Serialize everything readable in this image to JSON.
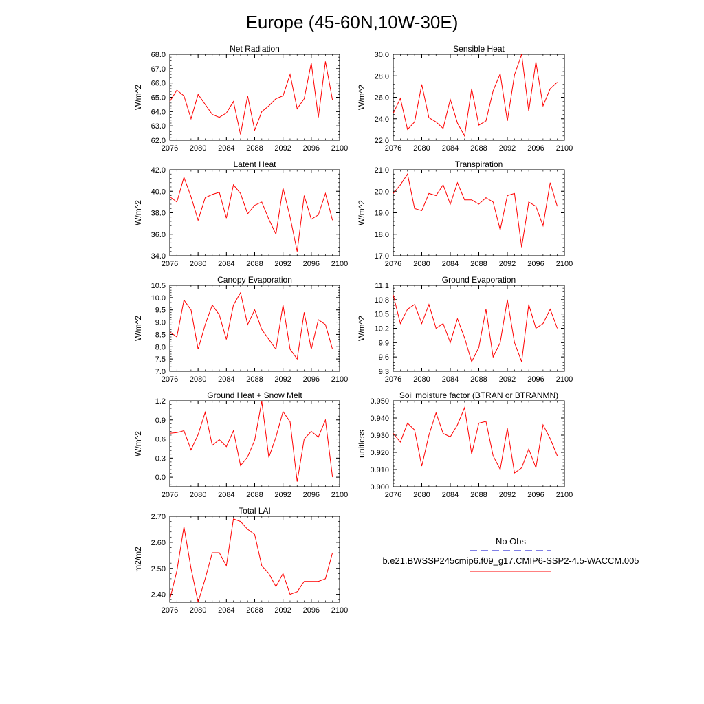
{
  "title": "Europe (45-60N,10W-30E)",
  "legend": {
    "obs_label": "No Obs",
    "model_label": "b.e21.BWSSP245cmip6.f09_g17.CMIP6-SSP2-4.5-WACCM.005",
    "obs_color": "#0000cc",
    "model_color": "#ff0000"
  },
  "chart_data": [
    {
      "type": "line",
      "title": "Net Radiation",
      "ylabel": "W/m^2",
      "xlim": [
        2076,
        2100
      ],
      "x_ticks": [
        "2076",
        "2080",
        "2084",
        "2088",
        "2092",
        "2096",
        "2100"
      ],
      "ylim": [
        62.0,
        68.0
      ],
      "y_ticks": [
        "62.0",
        "63.0",
        "64.0",
        "65.0",
        "66.0",
        "67.0",
        "68.0"
      ],
      "grid": false,
      "series": [
        {
          "color": "#ff0000",
          "x": [
            2076,
            2077,
            2078,
            2079,
            2080,
            2081,
            2082,
            2083,
            2084,
            2085,
            2086,
            2087,
            2088,
            2089,
            2090,
            2091,
            2092,
            2093,
            2094,
            2095,
            2096,
            2097,
            2098,
            2099
          ],
          "y": [
            64.7,
            65.5,
            65.1,
            63.5,
            65.2,
            64.5,
            63.8,
            63.6,
            63.9,
            64.7,
            62.4,
            65.1,
            62.7,
            64.0,
            64.4,
            64.9,
            65.1,
            66.6,
            64.2,
            64.9,
            67.4,
            63.6,
            67.5,
            64.8
          ]
        }
      ]
    },
    {
      "type": "line",
      "title": "Sensible Heat",
      "ylabel": "W/m^2",
      "xlim": [
        2076,
        2100
      ],
      "x_ticks": [
        "2076",
        "2080",
        "2084",
        "2088",
        "2092",
        "2096",
        "2100"
      ],
      "ylim": [
        22.0,
        30.0
      ],
      "y_ticks": [
        "22.0",
        "24.0",
        "26.0",
        "28.0",
        "30.0"
      ],
      "grid": false,
      "series": [
        {
          "color": "#ff0000",
          "x": [
            2076,
            2077,
            2078,
            2079,
            2080,
            2081,
            2082,
            2083,
            2084,
            2085,
            2086,
            2087,
            2088,
            2089,
            2090,
            2091,
            2092,
            2093,
            2094,
            2095,
            2096,
            2097,
            2098,
            2099
          ],
          "y": [
            24.5,
            25.9,
            23.0,
            23.7,
            27.2,
            24.1,
            23.7,
            23.1,
            25.8,
            23.6,
            22.4,
            26.8,
            23.4,
            23.8,
            26.6,
            28.2,
            23.8,
            28.1,
            30.0,
            24.7,
            29.3,
            25.2,
            26.8,
            27.4
          ]
        }
      ]
    },
    {
      "type": "line",
      "title": "Latent Heat",
      "ylabel": "W/m^2",
      "xlim": [
        2076,
        2100
      ],
      "x_ticks": [
        "2076",
        "2080",
        "2084",
        "2088",
        "2092",
        "2096",
        "2100"
      ],
      "ylim": [
        34.0,
        42.0
      ],
      "y_ticks": [
        "34.0",
        "36.0",
        "38.0",
        "40.0",
        "42.0"
      ],
      "grid": false,
      "series": [
        {
          "color": "#ff0000",
          "x": [
            2076,
            2077,
            2078,
            2079,
            2080,
            2081,
            2082,
            2083,
            2084,
            2085,
            2086,
            2087,
            2088,
            2089,
            2090,
            2091,
            2092,
            2093,
            2094,
            2095,
            2096,
            2097,
            2098,
            2099
          ],
          "y": [
            39.5,
            39.0,
            41.3,
            39.5,
            37.3,
            39.4,
            39.7,
            39.9,
            37.5,
            40.6,
            39.8,
            37.9,
            38.7,
            39.0,
            37.4,
            36.0,
            40.3,
            37.6,
            34.4,
            39.6,
            37.4,
            37.8,
            39.8,
            37.3
          ]
        }
      ]
    },
    {
      "type": "line",
      "title": "Transpiration",
      "ylabel": "W/m^2",
      "xlim": [
        2076,
        2100
      ],
      "x_ticks": [
        "2076",
        "2080",
        "2084",
        "2088",
        "2092",
        "2096",
        "2100"
      ],
      "ylim": [
        17.0,
        21.0
      ],
      "y_ticks": [
        "17.0",
        "18.0",
        "19.0",
        "20.0",
        "21.0"
      ],
      "grid": false,
      "series": [
        {
          "color": "#ff0000",
          "x": [
            2076,
            2077,
            2078,
            2079,
            2080,
            2081,
            2082,
            2083,
            2084,
            2085,
            2086,
            2087,
            2088,
            2089,
            2090,
            2091,
            2092,
            2093,
            2094,
            2095,
            2096,
            2097,
            2098,
            2099
          ],
          "y": [
            19.9,
            20.3,
            20.8,
            19.2,
            19.1,
            19.9,
            19.8,
            20.3,
            19.4,
            20.4,
            19.6,
            19.6,
            19.4,
            19.7,
            19.5,
            18.2,
            19.8,
            19.9,
            17.4,
            19.5,
            19.3,
            18.4,
            20.4,
            19.3
          ]
        }
      ]
    },
    {
      "type": "line",
      "title": "Canopy Evaporation",
      "ylabel": "W/m^2",
      "xlim": [
        2076,
        2100
      ],
      "x_ticks": [
        "2076",
        "2080",
        "2084",
        "2088",
        "2092",
        "2096",
        "2100"
      ],
      "ylim": [
        7.0,
        10.5
      ],
      "y_ticks": [
        "7.0",
        "7.5",
        "8.0",
        "8.5",
        "9.0",
        "9.5",
        "10.0",
        "10.5"
      ],
      "grid": false,
      "series": [
        {
          "color": "#ff0000",
          "x": [
            2076,
            2077,
            2078,
            2079,
            2080,
            2081,
            2082,
            2083,
            2084,
            2085,
            2086,
            2087,
            2088,
            2089,
            2090,
            2091,
            2092,
            2093,
            2094,
            2095,
            2096,
            2097,
            2098,
            2099
          ],
          "y": [
            8.6,
            8.4,
            9.9,
            9.5,
            7.9,
            8.9,
            9.7,
            9.3,
            8.3,
            9.7,
            10.2,
            8.9,
            9.5,
            8.7,
            8.3,
            7.9,
            9.7,
            7.9,
            7.5,
            9.4,
            7.9,
            9.1,
            8.9,
            7.9
          ]
        }
      ]
    },
    {
      "type": "line",
      "title": "Ground Evaporation",
      "ylabel": "W/m^2",
      "xlim": [
        2076,
        2100
      ],
      "x_ticks": [
        "2076",
        "2080",
        "2084",
        "2088",
        "2092",
        "2096",
        "2100"
      ],
      "ylim": [
        9.3,
        11.1
      ],
      "y_ticks": [
        "9.3",
        "9.6",
        "9.9",
        "10.2",
        "10.5",
        "10.8",
        "11.1"
      ],
      "grid": false,
      "series": [
        {
          "color": "#ff0000",
          "x": [
            2076,
            2077,
            2078,
            2079,
            2080,
            2081,
            2082,
            2083,
            2084,
            2085,
            2086,
            2087,
            2088,
            2089,
            2090,
            2091,
            2092,
            2093,
            2094,
            2095,
            2096,
            2097,
            2098,
            2099
          ],
          "y": [
            10.9,
            10.3,
            10.6,
            10.7,
            10.3,
            10.7,
            10.2,
            10.3,
            9.9,
            10.4,
            10.0,
            9.5,
            9.8,
            10.6,
            9.6,
            9.9,
            10.8,
            9.9,
            9.5,
            10.7,
            10.2,
            10.3,
            10.6,
            10.2
          ]
        }
      ]
    },
    {
      "type": "line",
      "title": "Ground Heat + Snow Melt",
      "ylabel": "W/m^2",
      "xlim": [
        2076,
        2100
      ],
      "x_ticks": [
        "2076",
        "2080",
        "2084",
        "2088",
        "2092",
        "2096",
        "2100"
      ],
      "ylim": [
        -0.15,
        1.2
      ],
      "y_ticks": [
        "0.0",
        "0.3",
        "0.6",
        "0.9",
        "1.2"
      ],
      "y_tick_values": [
        0.0,
        0.3,
        0.6,
        0.9,
        1.2
      ],
      "grid": false,
      "series": [
        {
          "color": "#ff0000",
          "x": [
            2076,
            2077,
            2078,
            2079,
            2080,
            2081,
            2082,
            2083,
            2084,
            2085,
            2086,
            2087,
            2088,
            2089,
            2090,
            2091,
            2092,
            2093,
            2094,
            2095,
            2096,
            2097,
            2098,
            2099
          ],
          "y": [
            0.69,
            0.7,
            0.73,
            0.43,
            0.67,
            1.02,
            0.5,
            0.59,
            0.48,
            0.73,
            0.18,
            0.32,
            0.58,
            1.19,
            0.31,
            0.63,
            1.03,
            0.87,
            -0.07,
            0.6,
            0.72,
            0.63,
            0.9,
            0.0
          ]
        }
      ]
    },
    {
      "type": "line",
      "title": "Soil moisture factor (BTRAN or BTRANMN)",
      "ylabel": "unitless",
      "xlim": [
        2076,
        2100
      ],
      "x_ticks": [
        "2076",
        "2080",
        "2084",
        "2088",
        "2092",
        "2096",
        "2100"
      ],
      "ylim": [
        0.9,
        0.95
      ],
      "y_ticks": [
        "0.900",
        "0.910",
        "0.920",
        "0.930",
        "0.940",
        "0.950"
      ],
      "grid": false,
      "series": [
        {
          "color": "#ff0000",
          "x": [
            2076,
            2077,
            2078,
            2079,
            2080,
            2081,
            2082,
            2083,
            2084,
            2085,
            2086,
            2087,
            2088,
            2089,
            2090,
            2091,
            2092,
            2093,
            2094,
            2095,
            2096,
            2097,
            2098,
            2099
          ],
          "y": [
            0.931,
            0.926,
            0.937,
            0.933,
            0.912,
            0.93,
            0.943,
            0.931,
            0.929,
            0.936,
            0.946,
            0.919,
            0.937,
            0.938,
            0.918,
            0.91,
            0.934,
            0.908,
            0.911,
            0.922,
            0.911,
            0.936,
            0.928,
            0.918
          ]
        }
      ]
    },
    {
      "type": "line",
      "title": "Total LAI",
      "ylabel": "m2/m2",
      "xlim": [
        2076,
        2100
      ],
      "x_ticks": [
        "2076",
        "2080",
        "2084",
        "2088",
        "2092",
        "2096",
        "2100"
      ],
      "ylim": [
        2.37,
        2.7
      ],
      "y_ticks": [
        "2.40",
        "2.50",
        "2.60",
        "2.70"
      ],
      "y_tick_values": [
        2.4,
        2.5,
        2.6,
        2.7
      ],
      "grid": false,
      "series": [
        {
          "color": "#ff0000",
          "x": [
            2076,
            2077,
            2078,
            2079,
            2080,
            2081,
            2082,
            2083,
            2084,
            2085,
            2086,
            2087,
            2088,
            2089,
            2090,
            2091,
            2092,
            2093,
            2094,
            2095,
            2096,
            2097,
            2098,
            2099
          ],
          "y": [
            2.38,
            2.49,
            2.66,
            2.5,
            2.37,
            2.46,
            2.56,
            2.56,
            2.51,
            2.69,
            2.68,
            2.65,
            2.63,
            2.51,
            2.48,
            2.43,
            2.48,
            2.4,
            2.41,
            2.45,
            2.45,
            2.45,
            2.46,
            2.56
          ]
        }
      ]
    }
  ]
}
